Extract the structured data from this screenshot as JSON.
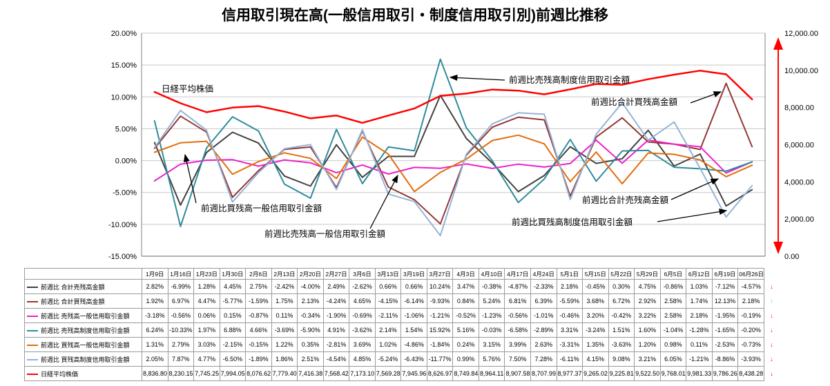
{
  "chart_data": {
    "type": "line",
    "title": "信用取引現在高(一般信用取引・制度信用取引別)前週比推移",
    "categories": [
      "1月9日",
      "1月16日",
      "1月23日",
      "1月30日",
      "2月6日",
      "2月13日",
      "2月20日",
      "2月27日",
      "3月6日",
      "3月13日",
      "3月19日",
      "3月27日",
      "4月3日",
      "4月10日",
      "4月17日",
      "4月24日",
      "5月1日",
      "5月15日",
      "5月22日",
      "5月29日",
      "6月5日",
      "6月12日",
      "6月19日",
      "06月26日"
    ],
    "left_axis": {
      "min": -15,
      "max": 20,
      "ticks": [
        20,
        15,
        10,
        5,
        0,
        -5,
        -10,
        -15
      ],
      "format": "percent"
    },
    "right_axis": {
      "min": 0,
      "max": 12000,
      "ticks": [
        12000,
        10000,
        8000,
        6000,
        4000,
        2000,
        0
      ]
    },
    "grid": true,
    "series": [
      {
        "name": "前週比 合計売残高金額",
        "color": "#404040",
        "axis": "left",
        "width": 2,
        "values": [
          2.82,
          -6.99,
          1.28,
          4.45,
          2.75,
          -2.42,
          -4.0,
          2.49,
          -2.62,
          0.66,
          0.66,
          10.24,
          3.47,
          -0.38,
          -4.87,
          -2.33,
          2.18,
          -0.45,
          0.3,
          4.75,
          -0.86,
          1.03,
          -7.12,
          -4.57
        ]
      },
      {
        "name": "前週比 合計買残高金額",
        "color": "#943634",
        "axis": "left",
        "width": 2,
        "values": [
          1.92,
          6.97,
          4.47,
          -5.77,
          -1.59,
          1.75,
          2.13,
          -4.24,
          4.65,
          -4.15,
          -6.14,
          -9.93,
          0.84,
          5.24,
          6.81,
          6.39,
          -5.59,
          3.68,
          6.72,
          2.92,
          2.58,
          1.74,
          12.13,
          2.18
        ]
      },
      {
        "name": "前週比 売残高一般信用取引金額",
        "color": "#EE1ECD",
        "axis": "left",
        "width": 2,
        "values": [
          -3.18,
          -0.56,
          0.06,
          0.15,
          -0.87,
          0.11,
          -0.34,
          -1.9,
          -0.69,
          -2.11,
          -1.06,
          -1.21,
          -0.52,
          -1.23,
          -0.56,
          -1.01,
          -0.46,
          3.2,
          -0.42,
          3.22,
          2.58,
          2.18,
          -1.95,
          -0.19
        ]
      },
      {
        "name": "前週比 売残高制度信用取引金額",
        "color": "#2E8B9B",
        "axis": "left",
        "width": 2,
        "values": [
          6.24,
          -10.33,
          1.97,
          6.88,
          4.66,
          -3.69,
          -5.9,
          4.91,
          -3.62,
          2.14,
          1.54,
          15.92,
          5.16,
          -0.03,
          -6.58,
          -2.89,
          3.31,
          -3.24,
          1.51,
          1.6,
          -1.04,
          -1.28,
          -1.65,
          -0.2
        ]
      },
      {
        "name": "前週比 買残高一般信用取引金額",
        "color": "#E36C0A",
        "axis": "left",
        "width": 2,
        "values": [
          1.31,
          2.79,
          3.03,
          -2.15,
          -0.15,
          1.22,
          0.35,
          -2.81,
          3.69,
          1.02,
          -4.86,
          -1.84,
          0.24,
          3.15,
          3.99,
          2.63,
          -3.31,
          1.35,
          -3.63,
          1.2,
          0.98,
          0.11,
          -2.53,
          -0.73
        ]
      },
      {
        "name": "前週比 買残高制度信用取引金額",
        "color": "#95B3D7",
        "axis": "left",
        "width": 2,
        "values": [
          2.05,
          7.87,
          4.77,
          -6.5,
          -1.89,
          1.86,
          2.51,
          -4.54,
          4.85,
          -5.24,
          -6.43,
          -11.77,
          0.99,
          5.76,
          7.5,
          7.28,
          -6.11,
          4.15,
          9.08,
          3.21,
          6.05,
          -1.21,
          -8.86,
          -3.93
        ]
      },
      {
        "name": "日経平均株価",
        "color": "#FF0000",
        "axis": "right",
        "width": 2.5,
        "values": [
          8836.8,
          8230.15,
          7745.25,
          7994.05,
          8076.62,
          7779.4,
          7416.38,
          7568.42,
          7173.1,
          7569.28,
          7945.96,
          8626.97,
          8749.84,
          8964.11,
          8907.58,
          8707.99,
          8977.37,
          9265.02,
          9225.81,
          9522.5,
          9768.01,
          9981.33,
          9786.26,
          8438.28
        ],
        "display": [
          "8,836.80",
          "8,230.15",
          "7,745.25",
          "7,994.05",
          "8,076.62",
          "7,779.40",
          "7,416.38",
          "7,568.42",
          "7,173.10",
          "7,569.28",
          "7,945.96",
          "8,626.97",
          "8,749.84",
          "8,964.11",
          "8,907.58",
          "8,707.99",
          "8,977.37",
          "9,265.02",
          "9,225.81",
          "9,522.50",
          "9,768.01",
          "9,981.33",
          "9,786.26",
          "8,438.28"
        ]
      }
    ],
    "annotations": [
      {
        "text": "日経平均株価",
        "x": 234,
        "y": 133,
        "arrow": null
      },
      {
        "text": "前週比売残高制度信用取引金額",
        "x": 737,
        "y": 120,
        "arrow": [
          731,
          116,
          652,
          112
        ]
      },
      {
        "text": "前週比合計買残高金額",
        "x": 856,
        "y": 152,
        "arrow": [
          1000,
          149,
          1044,
          133
        ]
      },
      {
        "text": "前週比買残高一般信用取引金額",
        "x": 291,
        "y": 306,
        "arrow": [
          284,
          294,
          268,
          224
        ]
      },
      {
        "text": "前週比売残高一般信用取引金額",
        "x": 383,
        "y": 343,
        "arrow": [
          536,
          331,
          576,
          254
        ]
      },
      {
        "text": "前週比合計売残高金額",
        "x": 843,
        "y": 294,
        "arrow": [
          972,
          289,
          1040,
          259
        ]
      },
      {
        "text": "前週比買残高制度信用取引金額",
        "x": 741,
        "y": 326,
        "arrow": [
          952,
          321,
          1052,
          305
        ]
      }
    ],
    "right_edge_arrow": {
      "color": "#FF0000",
      "x": 1127,
      "y1": 56,
      "y2": 366
    }
  },
  "table": {
    "trend_arrows": [
      {
        "dir": "down",
        "color": "#FF0000"
      },
      {
        "dir": "up",
        "color": "#8DB4E2"
      },
      {
        "dir": "down",
        "color": "#FF0000"
      },
      {
        "dir": "down",
        "color": "#FF0000"
      },
      {
        "dir": "down",
        "color": "#FF0000"
      },
      {
        "dir": "down",
        "color": "#FF0000"
      },
      {
        "dir": "down",
        "color": "#FF0000"
      }
    ]
  },
  "colors": {
    "gridline": "#C8C8C8",
    "axis_line": "#808080",
    "annotation": "#000000"
  }
}
